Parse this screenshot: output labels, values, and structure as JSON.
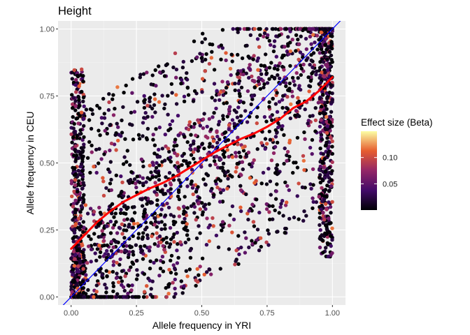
{
  "chart_data": {
    "type": "scatter",
    "title": "Height",
    "xlabel": "Allele frequency in YRI",
    "ylabel": "Allele frequency in CEU",
    "xlim": [
      -0.05,
      1.05
    ],
    "ylim": [
      -0.03,
      1.03
    ],
    "x_ticks": [
      0.0,
      0.25,
      0.5,
      0.75,
      1.0
    ],
    "x_tick_labels": [
      "0.00",
      "0.25",
      "0.50",
      "0.75",
      "1.00"
    ],
    "y_ticks": [
      0.0,
      0.25,
      0.5,
      0.75,
      1.0
    ],
    "y_tick_labels": [
      "0.00",
      "0.25",
      "0.50",
      "0.75",
      "1.00"
    ],
    "grid": true,
    "legend": {
      "title": "Effect size (Beta)",
      "position": "right",
      "type": "colorbar",
      "scale": "inferno",
      "range": [
        0.0,
        0.15
      ],
      "ticks": [
        0.05,
        0.1
      ],
      "tick_labels": [
        "0.05",
        "0.10"
      ]
    },
    "reference_line": {
      "name": "identity",
      "slope": 1,
      "intercept": 0,
      "color": "#0000ff"
    },
    "smooth_line": {
      "color": "#ff0000",
      "x": [
        0.0,
        0.05,
        0.1,
        0.15,
        0.2,
        0.25,
        0.3,
        0.35,
        0.4,
        0.45,
        0.5,
        0.55,
        0.6,
        0.65,
        0.7,
        0.75,
        0.8,
        0.85,
        0.9,
        0.95,
        1.0
      ],
      "y": [
        0.18,
        0.23,
        0.28,
        0.32,
        0.355,
        0.38,
        0.405,
        0.425,
        0.45,
        0.48,
        0.51,
        0.54,
        0.565,
        0.59,
        0.61,
        0.635,
        0.665,
        0.705,
        0.73,
        0.77,
        0.82
      ]
    },
    "points": {
      "approx_count": 2600,
      "x_range": [
        0.0,
        1.0
      ],
      "y_range": [
        0.0,
        1.0
      ],
      "density": "concentrated near x=0 and x=1 and along the diagonal",
      "value_range": [
        0.0,
        0.15
      ]
    }
  }
}
